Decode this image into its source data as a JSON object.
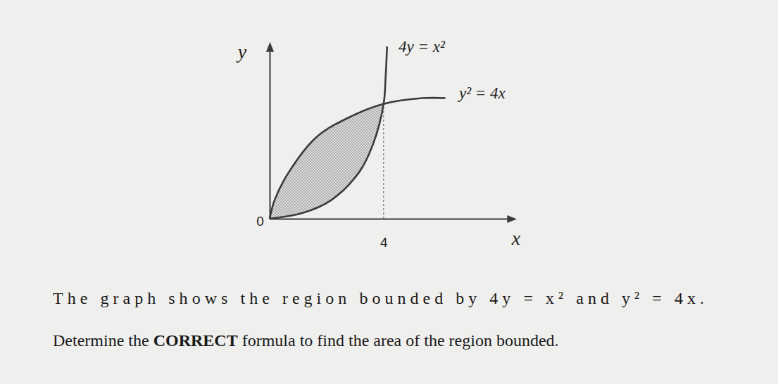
{
  "chart_data": {
    "type": "line",
    "xlabel": "x",
    "ylabel": "y",
    "xlim": [
      0,
      8.6
    ],
    "ylim": [
      0,
      6.1
    ],
    "xticks": [
      0,
      4
    ],
    "yticks": [],
    "tick_labels": "x",
    "grid": false,
    "series": [
      {
        "name": "4y = x²",
        "color": "#3a3a3a",
        "x": [
          0,
          1.16,
          2.15,
          3.14,
          3.63,
          4,
          4.07,
          4.12
        ],
        "values": [
          0,
          0.2,
          0.64,
          1.62,
          2.6,
          4,
          4.93,
          6.0
        ]
      },
      {
        "name": "y² = 4x",
        "color": "#3a3a3a",
        "x": [
          0,
          0.17,
          0.67,
          1.65,
          2.89,
          4,
          5.36,
          6.17
        ],
        "values": [
          0,
          0.64,
          1.62,
          2.85,
          3.58,
          4,
          4.2,
          4.2
        ]
      }
    ],
    "annotations": [
      "The graph shows the region bounded by 4y = x² and y² = 4x.",
      "Determine the CORRECT formula to find the area of the region bounded."
    ]
  }
}
